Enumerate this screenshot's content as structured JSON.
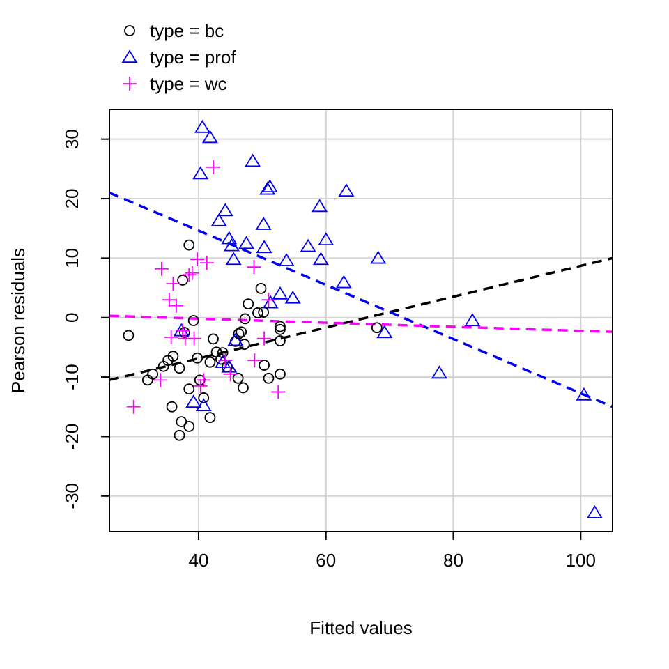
{
  "chart_data": {
    "type": "scatter",
    "xlabel": "Fitted values",
    "ylabel": "Pearson residuals",
    "xlim": [
      26,
      105
    ],
    "ylim": [
      -36,
      35
    ],
    "x_ticks": [
      40,
      60,
      80,
      100
    ],
    "y_ticks": [
      -30,
      -20,
      -10,
      0,
      10,
      20,
      30
    ],
    "x_tick_labels": [
      "40",
      "60",
      "80",
      "100"
    ],
    "y_tick_labels": [
      "-30",
      "-20",
      "-10",
      "0",
      "10",
      "20",
      "30"
    ],
    "grid": true,
    "legend_position": "top-left outside plot",
    "series": [
      {
        "name": "type = bc",
        "color": "#000000",
        "marker": "circle",
        "fit_line": {
          "x": [
            26,
            105
          ],
          "y": [
            -10.5,
            10.0
          ]
        },
        "points": [
          [
            29.0,
            -3.0
          ],
          [
            32.0,
            -10.5
          ],
          [
            32.8,
            -9.5
          ],
          [
            34.5,
            -8.2
          ],
          [
            35.2,
            -7.2
          ],
          [
            36.0,
            -6.5
          ],
          [
            35.8,
            -15.0
          ],
          [
            37.0,
            -8.5
          ],
          [
            37.0,
            -19.8
          ],
          [
            37.3,
            -17.5
          ],
          [
            37.5,
            6.3
          ],
          [
            37.8,
            -2.5
          ],
          [
            38.5,
            -12.0
          ],
          [
            38.5,
            -18.3
          ],
          [
            38.5,
            12.2
          ],
          [
            39.2,
            -0.5
          ],
          [
            39.8,
            -6.8
          ],
          [
            40.2,
            -10.5
          ],
          [
            40.8,
            -13.5
          ],
          [
            41.8,
            -16.8
          ],
          [
            41.8,
            -7.5
          ],
          [
            42.3,
            -3.6
          ],
          [
            42.8,
            -5.8
          ],
          [
            43.5,
            -7.0
          ],
          [
            43.8,
            -5.9
          ],
          [
            44.5,
            -8.3
          ],
          [
            45.8,
            -4.0
          ],
          [
            46.3,
            -2.7
          ],
          [
            46.2,
            -10.2
          ],
          [
            46.7,
            -2.4
          ],
          [
            47.0,
            -11.8
          ],
          [
            47.2,
            -4.5
          ],
          [
            47.3,
            -0.2
          ],
          [
            47.8,
            2.3
          ],
          [
            49.3,
            0.8
          ],
          [
            49.8,
            4.9
          ],
          [
            50.2,
            0.9
          ],
          [
            50.3,
            -8.0
          ],
          [
            51.0,
            -10.2
          ],
          [
            52.8,
            -2.0
          ],
          [
            52.8,
            -1.5
          ],
          [
            52.8,
            -3.9
          ],
          [
            52.8,
            -9.5
          ],
          [
            68.0,
            -1.7
          ]
        ]
      },
      {
        "name": "type = prof",
        "color": "#0000ee",
        "marker": "triangle",
        "fit_line": {
          "x": [
            26,
            105
          ],
          "y": [
            21.0,
            -15.0
          ]
        },
        "points": [
          [
            37.3,
            -2.2
          ],
          [
            39.2,
            -14.2
          ],
          [
            40.3,
            24.2
          ],
          [
            40.6,
            32.0
          ],
          [
            40.8,
            -14.8
          ],
          [
            41.8,
            30.3
          ],
          [
            43.2,
            16.3
          ],
          [
            43.8,
            -7.5
          ],
          [
            44.2,
            18.0
          ],
          [
            44.8,
            13.3
          ],
          [
            44.8,
            -8.3
          ],
          [
            45.2,
            12.1
          ],
          [
            45.5,
            9.8
          ],
          [
            45.8,
            -3.8
          ],
          [
            47.5,
            12.5
          ],
          [
            48.5,
            26.3
          ],
          [
            50.2,
            15.7
          ],
          [
            50.3,
            11.8
          ],
          [
            50.8,
            21.6
          ],
          [
            51.2,
            22.0
          ],
          [
            51.3,
            2.5
          ],
          [
            52.8,
            4.0
          ],
          [
            53.8,
            9.6
          ],
          [
            54.8,
            3.3
          ],
          [
            57.2,
            12.0
          ],
          [
            59.0,
            18.7
          ],
          [
            59.2,
            9.8
          ],
          [
            60.0,
            13.1
          ],
          [
            62.8,
            5.9
          ],
          [
            63.2,
            21.3
          ],
          [
            68.2,
            10.0
          ],
          [
            69.2,
            -2.5
          ],
          [
            77.8,
            -9.3
          ],
          [
            83.0,
            -0.5
          ],
          [
            100.5,
            -13.0
          ],
          [
            102.2,
            -32.8
          ]
        ]
      },
      {
        "name": "type = wc",
        "color": "#ff00ff",
        "marker": "plus",
        "fit_line": {
          "x": [
            26,
            105
          ],
          "y": [
            0.3,
            -2.4
          ]
        },
        "points": [
          [
            29.8,
            -15.0
          ],
          [
            34.0,
            -10.5
          ],
          [
            34.2,
            8.2
          ],
          [
            35.4,
            3.0
          ],
          [
            35.7,
            -3.3
          ],
          [
            36.0,
            5.7
          ],
          [
            36.5,
            2.0
          ],
          [
            37.5,
            -2.2
          ],
          [
            37.9,
            -3.5
          ],
          [
            38.5,
            7.2
          ],
          [
            39.0,
            7.5
          ],
          [
            39.3,
            -3.5
          ],
          [
            39.8,
            9.8
          ],
          [
            40.3,
            -11.5
          ],
          [
            40.8,
            -10.5
          ],
          [
            41.3,
            9.2
          ],
          [
            42.3,
            25.3
          ],
          [
            44.2,
            -7.2
          ],
          [
            45.0,
            -9.5
          ],
          [
            48.7,
            8.5
          ],
          [
            48.8,
            -7.2
          ],
          [
            50.3,
            -3.5
          ],
          [
            51.0,
            3.0
          ],
          [
            52.5,
            -12.5
          ]
        ]
      }
    ]
  }
}
